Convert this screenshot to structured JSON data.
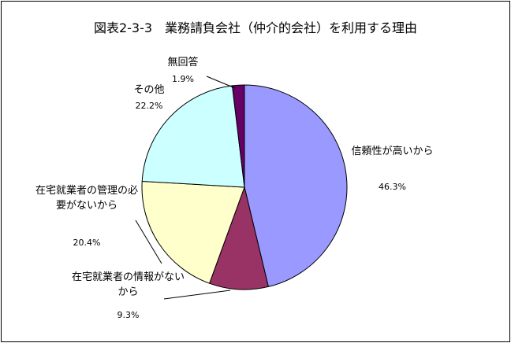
{
  "chart_data": {
    "type": "pie",
    "title": "図表2-3-3　業務請負会社（仲介的会社）を利用する理由",
    "categories": [
      "信頼性が高いから",
      "在宅就業者の情報がないから",
      "在宅就業者の管理の必要がないから",
      "その他",
      "無回答"
    ],
    "values": [
      46.3,
      9.3,
      20.4,
      22.2,
      1.9
    ],
    "value_labels": [
      "46.3%",
      "9.3%",
      "20.4%",
      "22.2%",
      "1.9%"
    ],
    "colors": [
      "#9999ff",
      "#993366",
      "#ffffcc",
      "#ccffff",
      "#660066"
    ]
  }
}
